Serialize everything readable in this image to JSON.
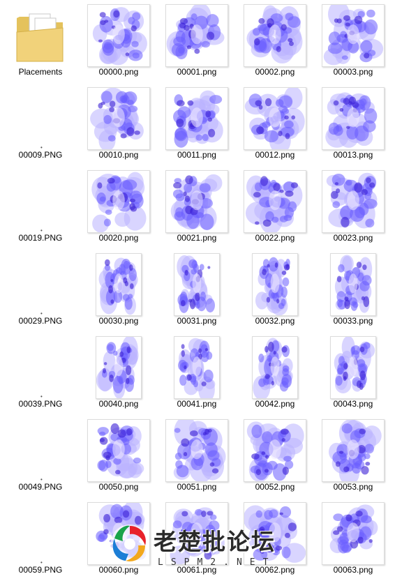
{
  "folder": {
    "name": "Placements",
    "icon": "folder-icon"
  },
  "rows": [
    {
      "left": "",
      "files": [
        "00000.png",
        "00001.png",
        "00002.png",
        "00003.png"
      ],
      "shape": "wide"
    },
    {
      "left": "00009.PNG",
      "files": [
        "00010.png",
        "00011.png",
        "00012.png",
        "00013.png"
      ],
      "shape": "wide"
    },
    {
      "left": "00019.PNG",
      "files": [
        "00020.png",
        "00021.png",
        "00022.png",
        "00023.png"
      ],
      "shape": "wide"
    },
    {
      "left": "00029.PNG",
      "files": [
        "00030.png",
        "00031.png",
        "00032.png",
        "00033.png"
      ],
      "shape": "tall"
    },
    {
      "left": "00039.PNG",
      "files": [
        "00040.png",
        "00041.png",
        "00042.png",
        "00043.png"
      ],
      "shape": "tall"
    },
    {
      "left": "00049.PNG",
      "files": [
        "00050.png",
        "00051.png",
        "00052.png",
        "00053.png"
      ],
      "shape": "wide"
    },
    {
      "left": "00059.PNG",
      "files": [
        "00060.png",
        "00061.png",
        "00062.png",
        "00063.png"
      ],
      "shape": "wide"
    }
  ],
  "watermark": {
    "title": "老楚批论坛",
    "subtitle": "LSPM2.NET",
    "logo_icon": "swirl-logo-icon"
  },
  "colors": {
    "flame": "#6a5cff",
    "flame_dark": "#3b1fd6",
    "flame_light": "#b9b3ff"
  }
}
